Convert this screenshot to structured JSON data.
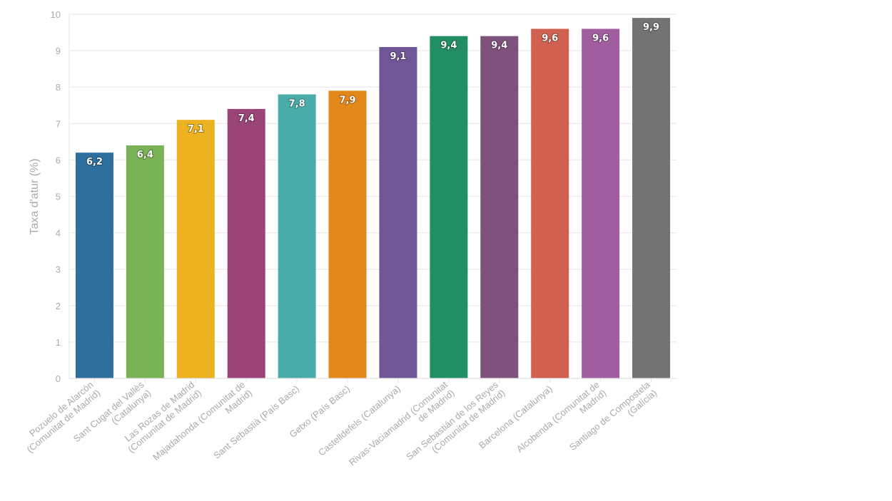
{
  "chart_data": {
    "type": "bar",
    "title": "",
    "xlabel": "",
    "ylabel": "Taxa d'atur (%)",
    "ylim": [
      0,
      10
    ],
    "yticks": [
      "0",
      "1",
      "2",
      "3",
      "4",
      "5",
      "6",
      "7",
      "8",
      "9",
      "10"
    ],
    "grid": true,
    "categories": [
      [
        "Pozuelo de Alarcón",
        "(Comunitat de Madrid)"
      ],
      [
        "Sant Cugat del Vallès",
        "(Catalunya)"
      ],
      [
        "Las Rozas de Madrid",
        "(Comunitat de Madrid)"
      ],
      [
        "Majadahonda (Comunitat de",
        "Madrid)"
      ],
      [
        "Sant Sebastià (País Basc)"
      ],
      [
        "Getxo (País Basc)"
      ],
      [
        "Castelldefels (Catalunya)"
      ],
      [
        "Rivas-Vaciamadrid (Comunitat",
        "de Madrid)"
      ],
      [
        "San Sebastián de los Reyes",
        "(Comunitat de Madrid)"
      ],
      [
        "Barcelona (Catalunya)"
      ],
      [
        "Alcobenda (Comunitat de",
        "Madrid)"
      ],
      [
        "Santiago de Compostela",
        "(Galícia)"
      ]
    ],
    "values": [
      6.2,
      6.4,
      7.1,
      7.4,
      7.8,
      7.9,
      9.1,
      9.4,
      9.4,
      9.6,
      9.6,
      9.9
    ],
    "value_labels": [
      "6,2",
      "6,4",
      "7,1",
      "7,4",
      "7,8",
      "7,9",
      "9,1",
      "9,4",
      "9,4",
      "9,6",
      "9,6",
      "9,9"
    ],
    "colors": [
      "#2e6f9e",
      "#7ab356",
      "#edb21f",
      "#9b4478",
      "#4aaca9",
      "#e3871a",
      "#6e5697",
      "#228e63",
      "#7e527d",
      "#d06150",
      "#a05ea1",
      "#737373"
    ]
  }
}
